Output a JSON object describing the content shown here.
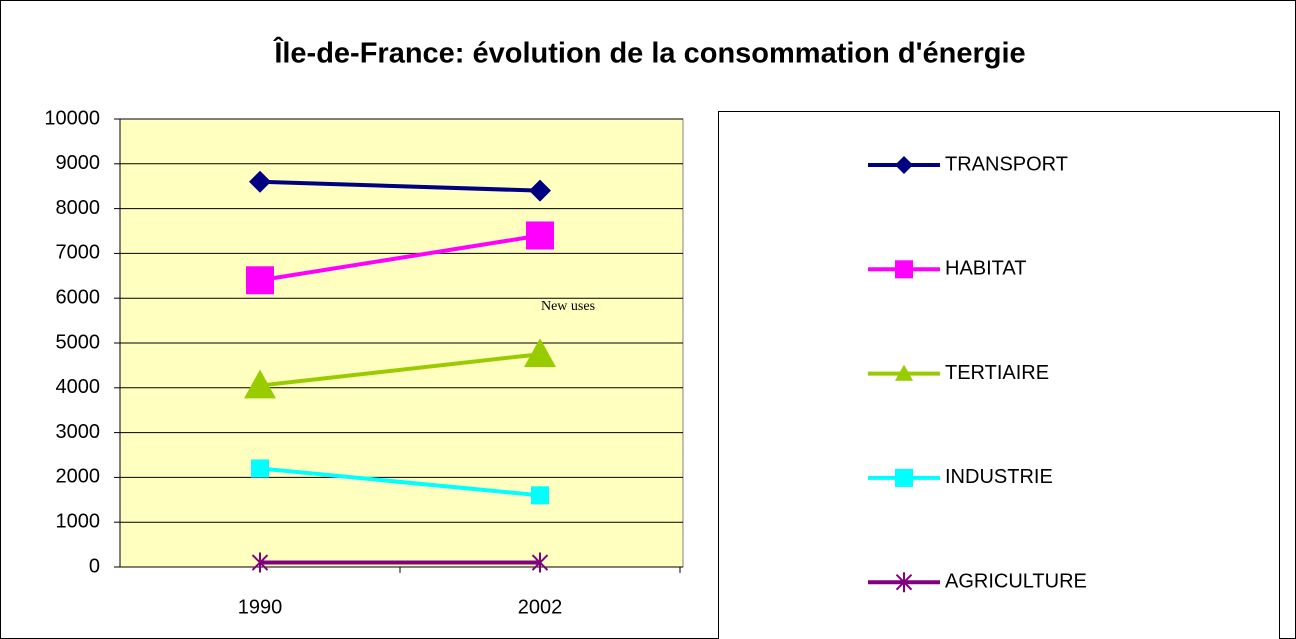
{
  "chart_data": {
    "type": "line",
    "title": "Île-de-France: évolution de la consommation d'énergie",
    "categories": [
      "1990",
      "2002"
    ],
    "series": [
      {
        "name": "TRANSPORT",
        "color": "#000080",
        "marker": "diamond",
        "values": [
          8600,
          8400
        ]
      },
      {
        "name": "HABITAT",
        "color": "#ff00ff",
        "marker": "square",
        "values": [
          6400,
          7400
        ]
      },
      {
        "name": "TERTIAIRE",
        "color": "#99cc00",
        "marker": "triangle",
        "values": [
          4050,
          4750
        ]
      },
      {
        "name": "INDUSTRIE",
        "color": "#00ffff",
        "marker": "square",
        "values": [
          2200,
          1600
        ]
      },
      {
        "name": "AGRICULTURE",
        "color": "#800080",
        "marker": "star",
        "values": [
          100,
          100
        ]
      }
    ],
    "annotations": [
      "New uses"
    ],
    "ylim": [
      0,
      10000
    ],
    "yticks": [
      0,
      1000,
      2000,
      3000,
      4000,
      5000,
      6000,
      7000,
      8000,
      9000,
      10000
    ],
    "grid": true,
    "legend": "right"
  }
}
